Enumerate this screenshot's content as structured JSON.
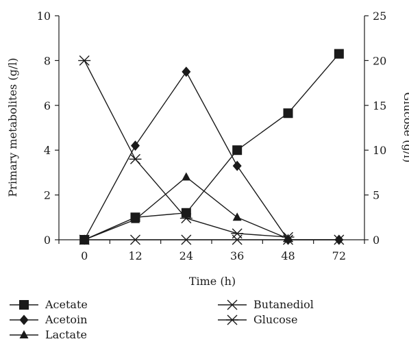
{
  "chart_data": {
    "type": "line",
    "title": "",
    "xlabel": "Time (h)",
    "ylabel": "Primary metabolites (g/l)",
    "y2label": "Glucose (g/l)",
    "categories": [
      "0",
      "12",
      "24",
      "36",
      "48",
      "72"
    ],
    "ylim": [
      0,
      10
    ],
    "y2lim": [
      0,
      25
    ],
    "yticks": [
      "0",
      "2",
      "4",
      "6",
      "8",
      "10"
    ],
    "y2ticks": [
      "0",
      "5",
      "10",
      "15",
      "20",
      "25"
    ],
    "grid": false,
    "legend_position": "bottom",
    "series": [
      {
        "name": "Acetate",
        "marker": "square",
        "axis": "left",
        "values": [
          0,
          1.0,
          1.2,
          4.0,
          5.65,
          8.3
        ]
      },
      {
        "name": "Acetoin",
        "marker": "diamond",
        "axis": "left",
        "values": [
          0,
          4.2,
          7.5,
          3.3,
          0.0,
          0.0
        ]
      },
      {
        "name": "Lactate",
        "marker": "triangle",
        "axis": "left",
        "values": [
          0,
          0.9,
          2.8,
          1.0,
          0.05,
          null
        ]
      },
      {
        "name": "Butanediol",
        "marker": "x",
        "axis": "left",
        "values": [
          0,
          0,
          0,
          0,
          0,
          0
        ]
      },
      {
        "name": "Glucose",
        "marker": "asterisk",
        "axis": "right",
        "values": [
          20,
          9.0,
          2.4,
          0.7,
          0.3,
          null
        ]
      }
    ]
  }
}
